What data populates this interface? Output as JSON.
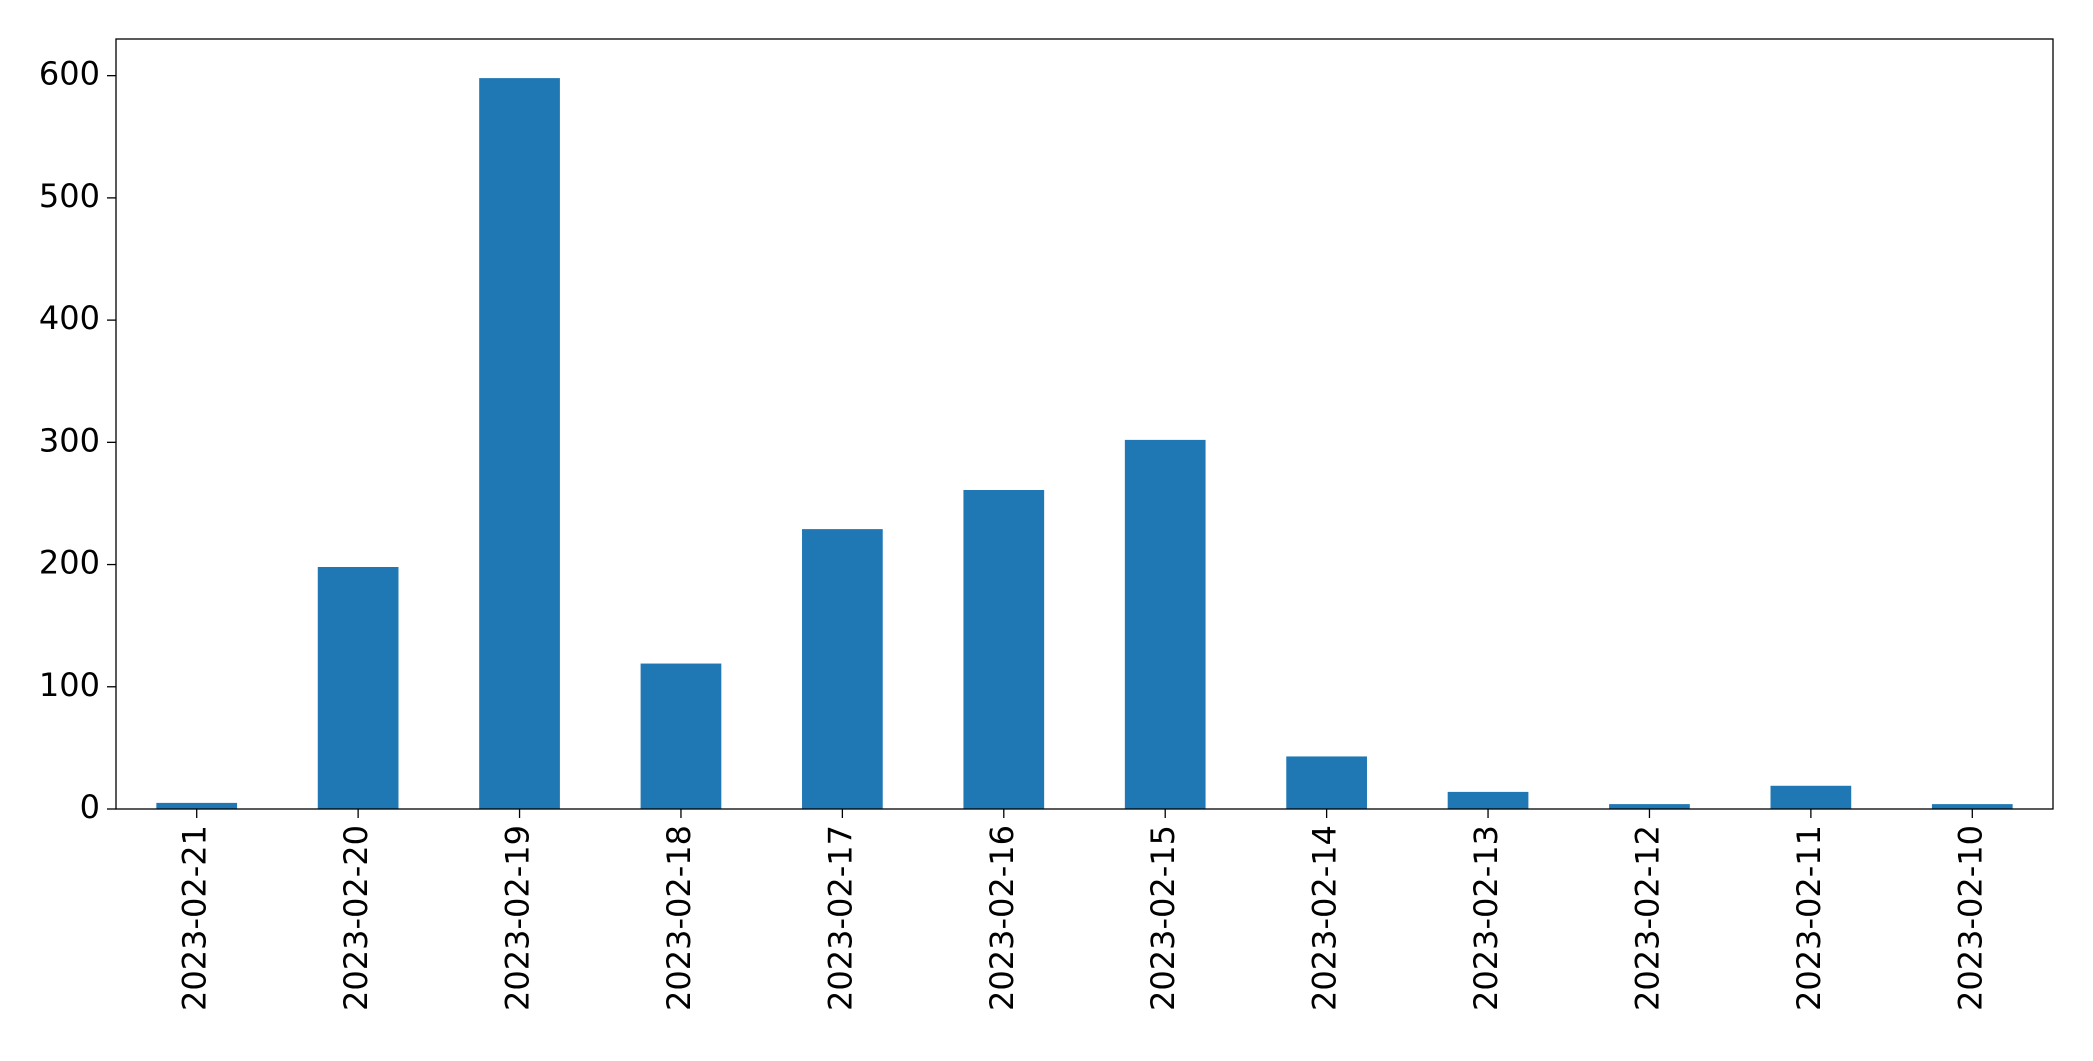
{
  "chart_data": {
    "type": "bar",
    "categories": [
      "2023-02-21",
      "2023-02-20",
      "2023-02-19",
      "2023-02-18",
      "2023-02-17",
      "2023-02-16",
      "2023-02-15",
      "2023-02-14",
      "2023-02-13",
      "2023-02-12",
      "2023-02-11",
      "2023-02-10"
    ],
    "values": [
      5,
      198,
      598,
      119,
      229,
      261,
      302,
      43,
      14,
      4,
      19,
      4
    ],
    "color": "#1f77b4",
    "ylim": [
      0,
      630
    ],
    "yticks": [
      0,
      100,
      200,
      300,
      400,
      500,
      600
    ],
    "grid": false
  }
}
